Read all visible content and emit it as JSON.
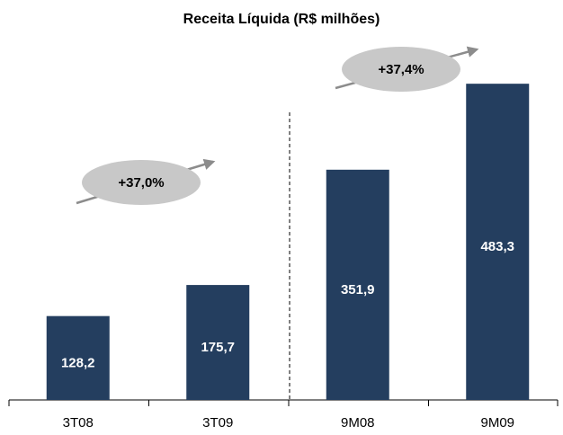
{
  "chart_data": {
    "type": "bar",
    "title": "Receita Líquida (R$ milhões)",
    "categories": [
      "3T08",
      "3T09",
      "9M08",
      "9M09"
    ],
    "values": [
      128.2,
      175.7,
      351.9,
      483.3
    ],
    "value_labels": [
      "128,2",
      "175,7",
      "351,9",
      "483,3"
    ],
    "color": "#243e5f",
    "ylim": [
      0,
      500
    ],
    "annotations": [
      "+37,0%",
      "+37,4%"
    ]
  }
}
